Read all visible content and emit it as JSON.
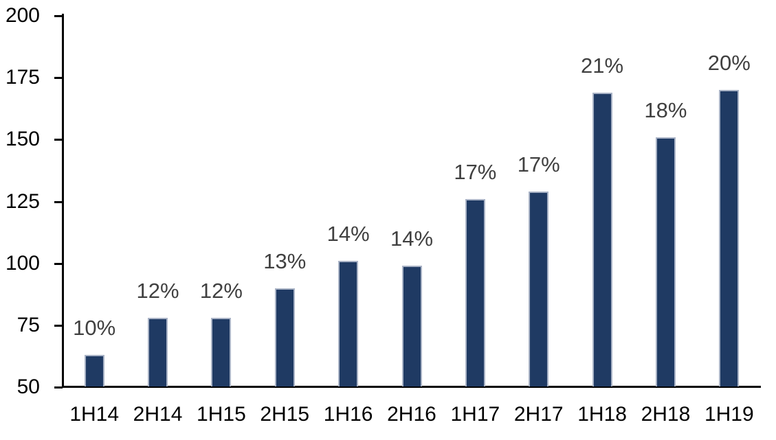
{
  "chart_data": {
    "type": "bar",
    "categories": [
      "1H14",
      "2H14",
      "1H15",
      "2H15",
      "1H16",
      "2H16",
      "1H17",
      "2H17",
      "1H18",
      "2H18",
      "1H19"
    ],
    "values": [
      63,
      78,
      78,
      90,
      101,
      99,
      126,
      129,
      169,
      151,
      170
    ],
    "data_labels": [
      "10%",
      "12%",
      "12%",
      "13%",
      "14%",
      "14%",
      "17%",
      "17%",
      "21%",
      "18%",
      "20%"
    ],
    "ylim": [
      50,
      200
    ],
    "yticks": [
      50,
      75,
      100,
      125,
      150,
      175,
      200
    ],
    "grid": false,
    "legend": false,
    "layout": {
      "data_label_position": "outside-end",
      "tick_position": "outside",
      "bar_gap": "wide"
    },
    "colors": {
      "bar_fill": "#1F3A63",
      "bar_border": "#A9B3C6",
      "data_label": "#404040",
      "axis_text": "#000000",
      "axis_line": "#000000",
      "background": "#FFFFFF"
    }
  }
}
